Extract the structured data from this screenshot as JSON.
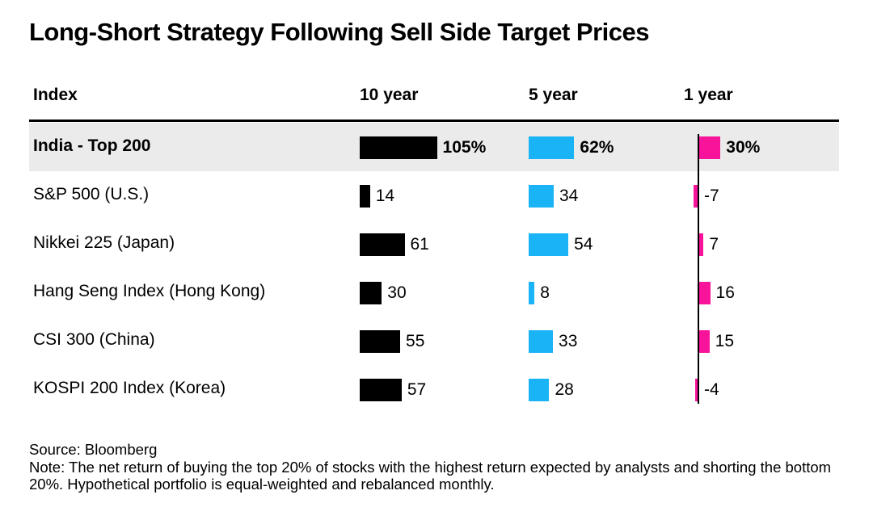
{
  "title": "Long-Short Strategy Following Sell Side Target Prices",
  "source": "Source: Bloomberg",
  "note": "Note: The net return of buying the top 20% of stocks with the highest return expected by analysts and shorting the bottom 20%. Hypothetical portfolio is equal-weighted and rebalanced monthly.",
  "chart_data": {
    "type": "bar",
    "orientation": "horizontal",
    "title": "Long-Short Strategy Following Sell Side Target Prices",
    "index_header": "Index",
    "categories": [
      "India - Top 200",
      "S&P 500 (U.S.)",
      "Nikkei 225 (Japan)",
      "Hang Seng Index (Hong Kong)",
      "CSI 300 (China)",
      "KOSPI 200 Index (Korea)"
    ],
    "highlight_category": "India - Top 200",
    "series": [
      {
        "name": "10 year",
        "color": "#000000",
        "values": [
          105,
          14,
          61,
          30,
          55,
          57
        ],
        "labels": [
          "105%",
          "14",
          "61",
          "30",
          "55",
          "57"
        ]
      },
      {
        "name": "5 year",
        "color": "#1ab3f5",
        "values": [
          62,
          34,
          54,
          8,
          33,
          28
        ],
        "labels": [
          "62%",
          "34",
          "54",
          "8",
          "33",
          "28"
        ]
      },
      {
        "name": "1 year",
        "color": "#f7149b",
        "values": [
          30,
          -7,
          7,
          16,
          15,
          -4
        ],
        "labels": [
          "30%",
          "-7",
          "7",
          "16",
          "15",
          "-4"
        ]
      }
    ]
  }
}
